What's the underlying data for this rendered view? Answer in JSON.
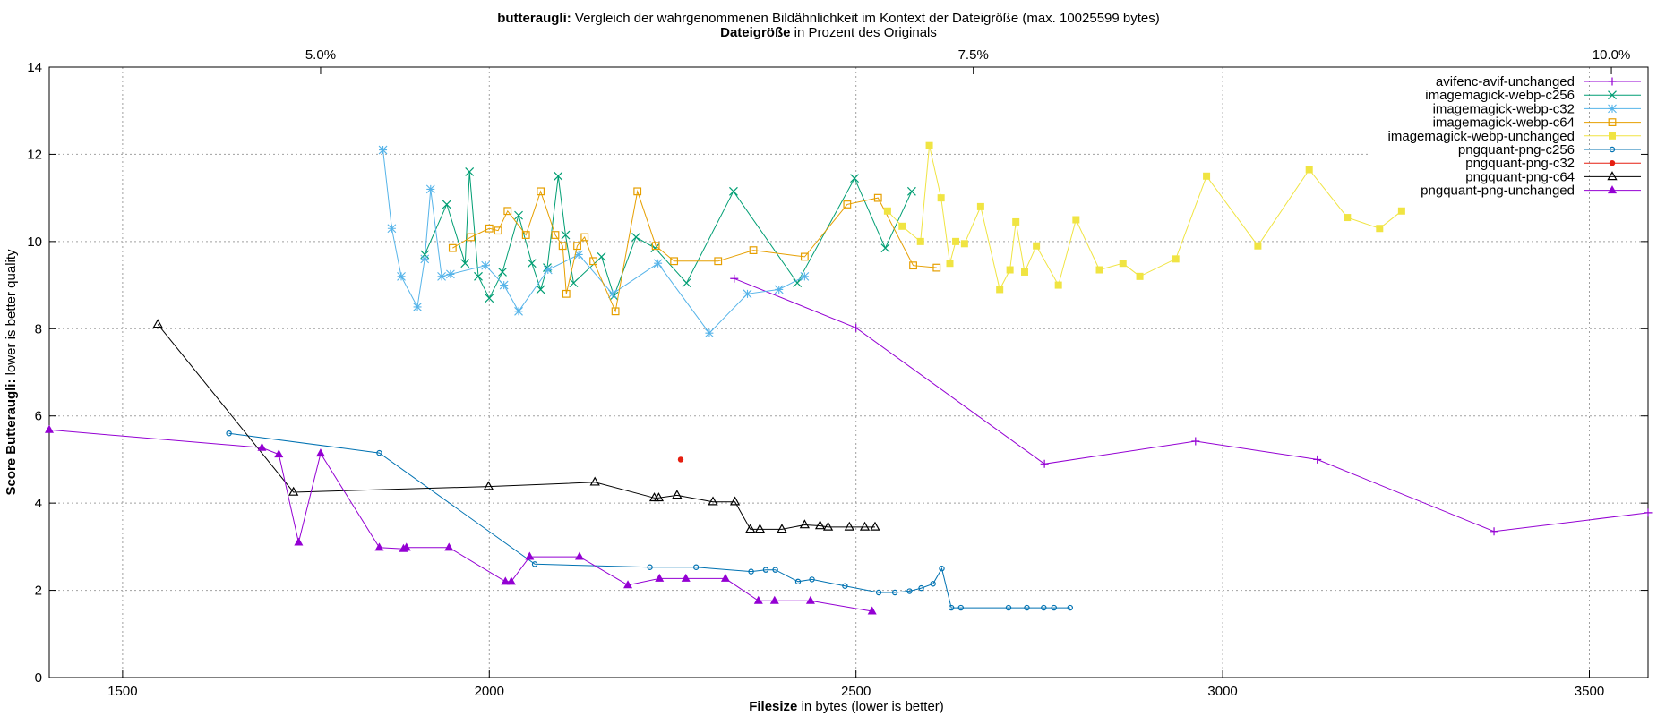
{
  "chart_data": {
    "type": "line",
    "title_bold": "butteraugli:",
    "title_rest": " Vergleich der wahrgenommenen Bildähnlichkeit im Kontext der Dateigröße (max. 10025599 bytes)",
    "x2label_bold": "Dateigröße",
    "x2label_rest": " in Prozent des Originals",
    "xlabel_bold": "Filesize",
    "xlabel_rest": " in bytes (lower is better)",
    "ylabel_bold": "Score Butteraugli:",
    "ylabel_rest": " lower is better quality",
    "xlim": [
      1400,
      3580
    ],
    "ylim": [
      0,
      14
    ],
    "xticks": [
      1500,
      2000,
      2500,
      3000,
      3500
    ],
    "yticks": [
      0,
      2,
      4,
      6,
      8,
      10,
      12,
      14
    ],
    "x2ticks": [
      {
        "x": 1770,
        "label": "5.0%"
      },
      {
        "x": 2660,
        "label": "7.5%"
      },
      {
        "x": 3530,
        "label": "10.0%"
      }
    ],
    "grid": true,
    "legend_position": "top-right",
    "series": [
      {
        "name": "avifenc-avif-unchanged",
        "color": "#9400d3",
        "marker": "plus",
        "points": [
          [
            2334,
            9.15
          ],
          [
            2500,
            8.02
          ],
          [
            2757,
            4.9
          ],
          [
            2963,
            5.42
          ],
          [
            3129,
            5.0
          ],
          [
            3370,
            3.35
          ],
          [
            3580,
            3.78
          ]
        ]
      },
      {
        "name": "imagemagick-webp-c256",
        "color": "#009e73",
        "marker": "cross",
        "points": [
          [
            1912,
            9.7
          ],
          [
            1942,
            10.85
          ],
          [
            1967,
            9.5
          ],
          [
            1973,
            11.6
          ],
          [
            1985,
            9.2
          ],
          [
            2000,
            8.7
          ],
          [
            2018,
            9.3
          ],
          [
            2040,
            10.6
          ],
          [
            2058,
            9.5
          ],
          [
            2070,
            8.9
          ],
          [
            2079,
            9.4
          ],
          [
            2094,
            11.5
          ],
          [
            2104,
            10.15
          ],
          [
            2115,
            9.05
          ],
          [
            2153,
            9.65
          ],
          [
            2170,
            8.75
          ],
          [
            2200,
            10.1
          ],
          [
            2226,
            9.85
          ],
          [
            2269,
            9.05
          ],
          [
            2333,
            11.15
          ],
          [
            2420,
            9.05
          ],
          [
            2498,
            11.45
          ],
          [
            2540,
            9.85
          ],
          [
            2576,
            11.15
          ]
        ]
      },
      {
        "name": "imagemagick-webp-c32",
        "color": "#56b4e9",
        "marker": "star",
        "points": [
          [
            1855,
            12.1
          ],
          [
            1867,
            10.3
          ],
          [
            1880,
            9.2
          ],
          [
            1902,
            8.5
          ],
          [
            1912,
            9.6
          ],
          [
            1920,
            11.2
          ],
          [
            1935,
            9.2
          ],
          [
            1947,
            9.25
          ],
          [
            1995,
            9.45
          ],
          [
            2020,
            9.0
          ],
          [
            2040,
            8.4
          ],
          [
            2080,
            9.35
          ],
          [
            2122,
            9.7
          ],
          [
            2168,
            8.8
          ],
          [
            2230,
            9.5
          ],
          [
            2300,
            7.9
          ],
          [
            2352,
            8.8
          ],
          [
            2395,
            8.9
          ],
          [
            2430,
            9.2
          ]
        ]
      },
      {
        "name": "imagemagick-webp-c64",
        "color": "#e69f00",
        "marker": "square",
        "points": [
          [
            1950,
            9.85
          ],
          [
            1975,
            10.1
          ],
          [
            2000,
            10.3
          ],
          [
            2012,
            10.25
          ],
          [
            2025,
            10.7
          ],
          [
            2050,
            10.15
          ],
          [
            2070,
            11.15
          ],
          [
            2090,
            10.15
          ],
          [
            2100,
            9.9
          ],
          [
            2105,
            8.8
          ],
          [
            2120,
            9.9
          ],
          [
            2130,
            10.1
          ],
          [
            2142,
            9.55
          ],
          [
            2172,
            8.4
          ],
          [
            2202,
            11.15
          ],
          [
            2227,
            9.9
          ],
          [
            2252,
            9.55
          ],
          [
            2312,
            9.55
          ],
          [
            2360,
            9.8
          ],
          [
            2430,
            9.65
          ],
          [
            2488,
            10.85
          ],
          [
            2530,
            11.0
          ],
          [
            2578,
            9.45
          ],
          [
            2610,
            9.4
          ]
        ]
      },
      {
        "name": "imagemagick-webp-unchanged",
        "color": "#f0e442",
        "marker": "filled-square",
        "points": [
          [
            2543,
            10.7
          ],
          [
            2563,
            10.35
          ],
          [
            2588,
            10.0
          ],
          [
            2600,
            12.2
          ],
          [
            2616,
            11.0
          ],
          [
            2628,
            9.5
          ],
          [
            2636,
            10.0
          ],
          [
            2648,
            9.95
          ],
          [
            2670,
            10.8
          ],
          [
            2696,
            8.9
          ],
          [
            2710,
            9.35
          ],
          [
            2718,
            10.45
          ],
          [
            2730,
            9.3
          ],
          [
            2746,
            9.9
          ],
          [
            2776,
            9.0
          ],
          [
            2800,
            10.5
          ],
          [
            2832,
            9.35
          ],
          [
            2864,
            9.5
          ],
          [
            2887,
            9.2
          ],
          [
            2936,
            9.6
          ],
          [
            2978,
            11.5
          ],
          [
            3048,
            9.9
          ],
          [
            3118,
            11.65
          ],
          [
            3170,
            10.55
          ],
          [
            3214,
            10.3
          ],
          [
            3244,
            10.7
          ]
        ]
      },
      {
        "name": "pngquant-png-c256",
        "color": "#0072b2",
        "marker": "circle",
        "points": [
          [
            1645,
            5.6
          ],
          [
            1850,
            5.15
          ],
          [
            2062,
            2.6
          ],
          [
            2219,
            2.53
          ],
          [
            2282,
            2.53
          ],
          [
            2357,
            2.43
          ],
          [
            2377,
            2.47
          ],
          [
            2390,
            2.47
          ],
          [
            2421,
            2.2
          ],
          [
            2440,
            2.25
          ],
          [
            2485,
            2.1
          ],
          [
            2531,
            1.95
          ],
          [
            2553,
            1.95
          ],
          [
            2573,
            1.98
          ],
          [
            2589,
            2.05
          ],
          [
            2605,
            2.15
          ],
          [
            2617,
            2.5
          ],
          [
            2630,
            1.6
          ],
          [
            2643,
            1.6
          ],
          [
            2708,
            1.6
          ],
          [
            2733,
            1.6
          ],
          [
            2756,
            1.6
          ],
          [
            2770,
            1.6
          ],
          [
            2792,
            1.6
          ]
        ]
      },
      {
        "name": "pngquant-png-c32",
        "color": "#e51e10",
        "marker": "filled-circle",
        "points": [
          [
            2261,
            5.0
          ]
        ]
      },
      {
        "name": "pngquant-png-c64",
        "color": "#000000",
        "marker": "triangle",
        "points": [
          [
            1548,
            8.1
          ],
          [
            1733,
            4.25
          ],
          [
            1999,
            4.38
          ],
          [
            2144,
            4.48
          ],
          [
            2225,
            4.12
          ],
          [
            2231,
            4.12
          ],
          [
            2256,
            4.18
          ],
          [
            2305,
            4.03
          ],
          [
            2335,
            4.03
          ],
          [
            2356,
            3.4
          ],
          [
            2369,
            3.4
          ],
          [
            2399,
            3.4
          ],
          [
            2430,
            3.5
          ],
          [
            2451,
            3.48
          ],
          [
            2462,
            3.45
          ],
          [
            2491,
            3.45
          ],
          [
            2512,
            3.45
          ],
          [
            2526,
            3.45
          ]
        ]
      },
      {
        "name": "pngquant-png-unchanged",
        "color": "#9400d3",
        "marker": "filled-triangle",
        "points": [
          [
            1400,
            5.68
          ],
          [
            1690,
            5.27
          ],
          [
            1713,
            5.12
          ],
          [
            1740,
            3.1
          ],
          [
            1770,
            5.14
          ],
          [
            1850,
            2.98
          ],
          [
            1883,
            2.95
          ],
          [
            1887,
            2.98
          ],
          [
            1945,
            2.98
          ],
          [
            2022,
            2.2
          ],
          [
            2030,
            2.2
          ],
          [
            2055,
            2.77
          ],
          [
            2123,
            2.77
          ],
          [
            2189,
            2.12
          ],
          [
            2232,
            2.27
          ],
          [
            2268,
            2.27
          ],
          [
            2322,
            2.27
          ],
          [
            2367,
            1.76
          ],
          [
            2389,
            1.76
          ],
          [
            2438,
            1.76
          ],
          [
            2522,
            1.52
          ]
        ]
      }
    ]
  }
}
